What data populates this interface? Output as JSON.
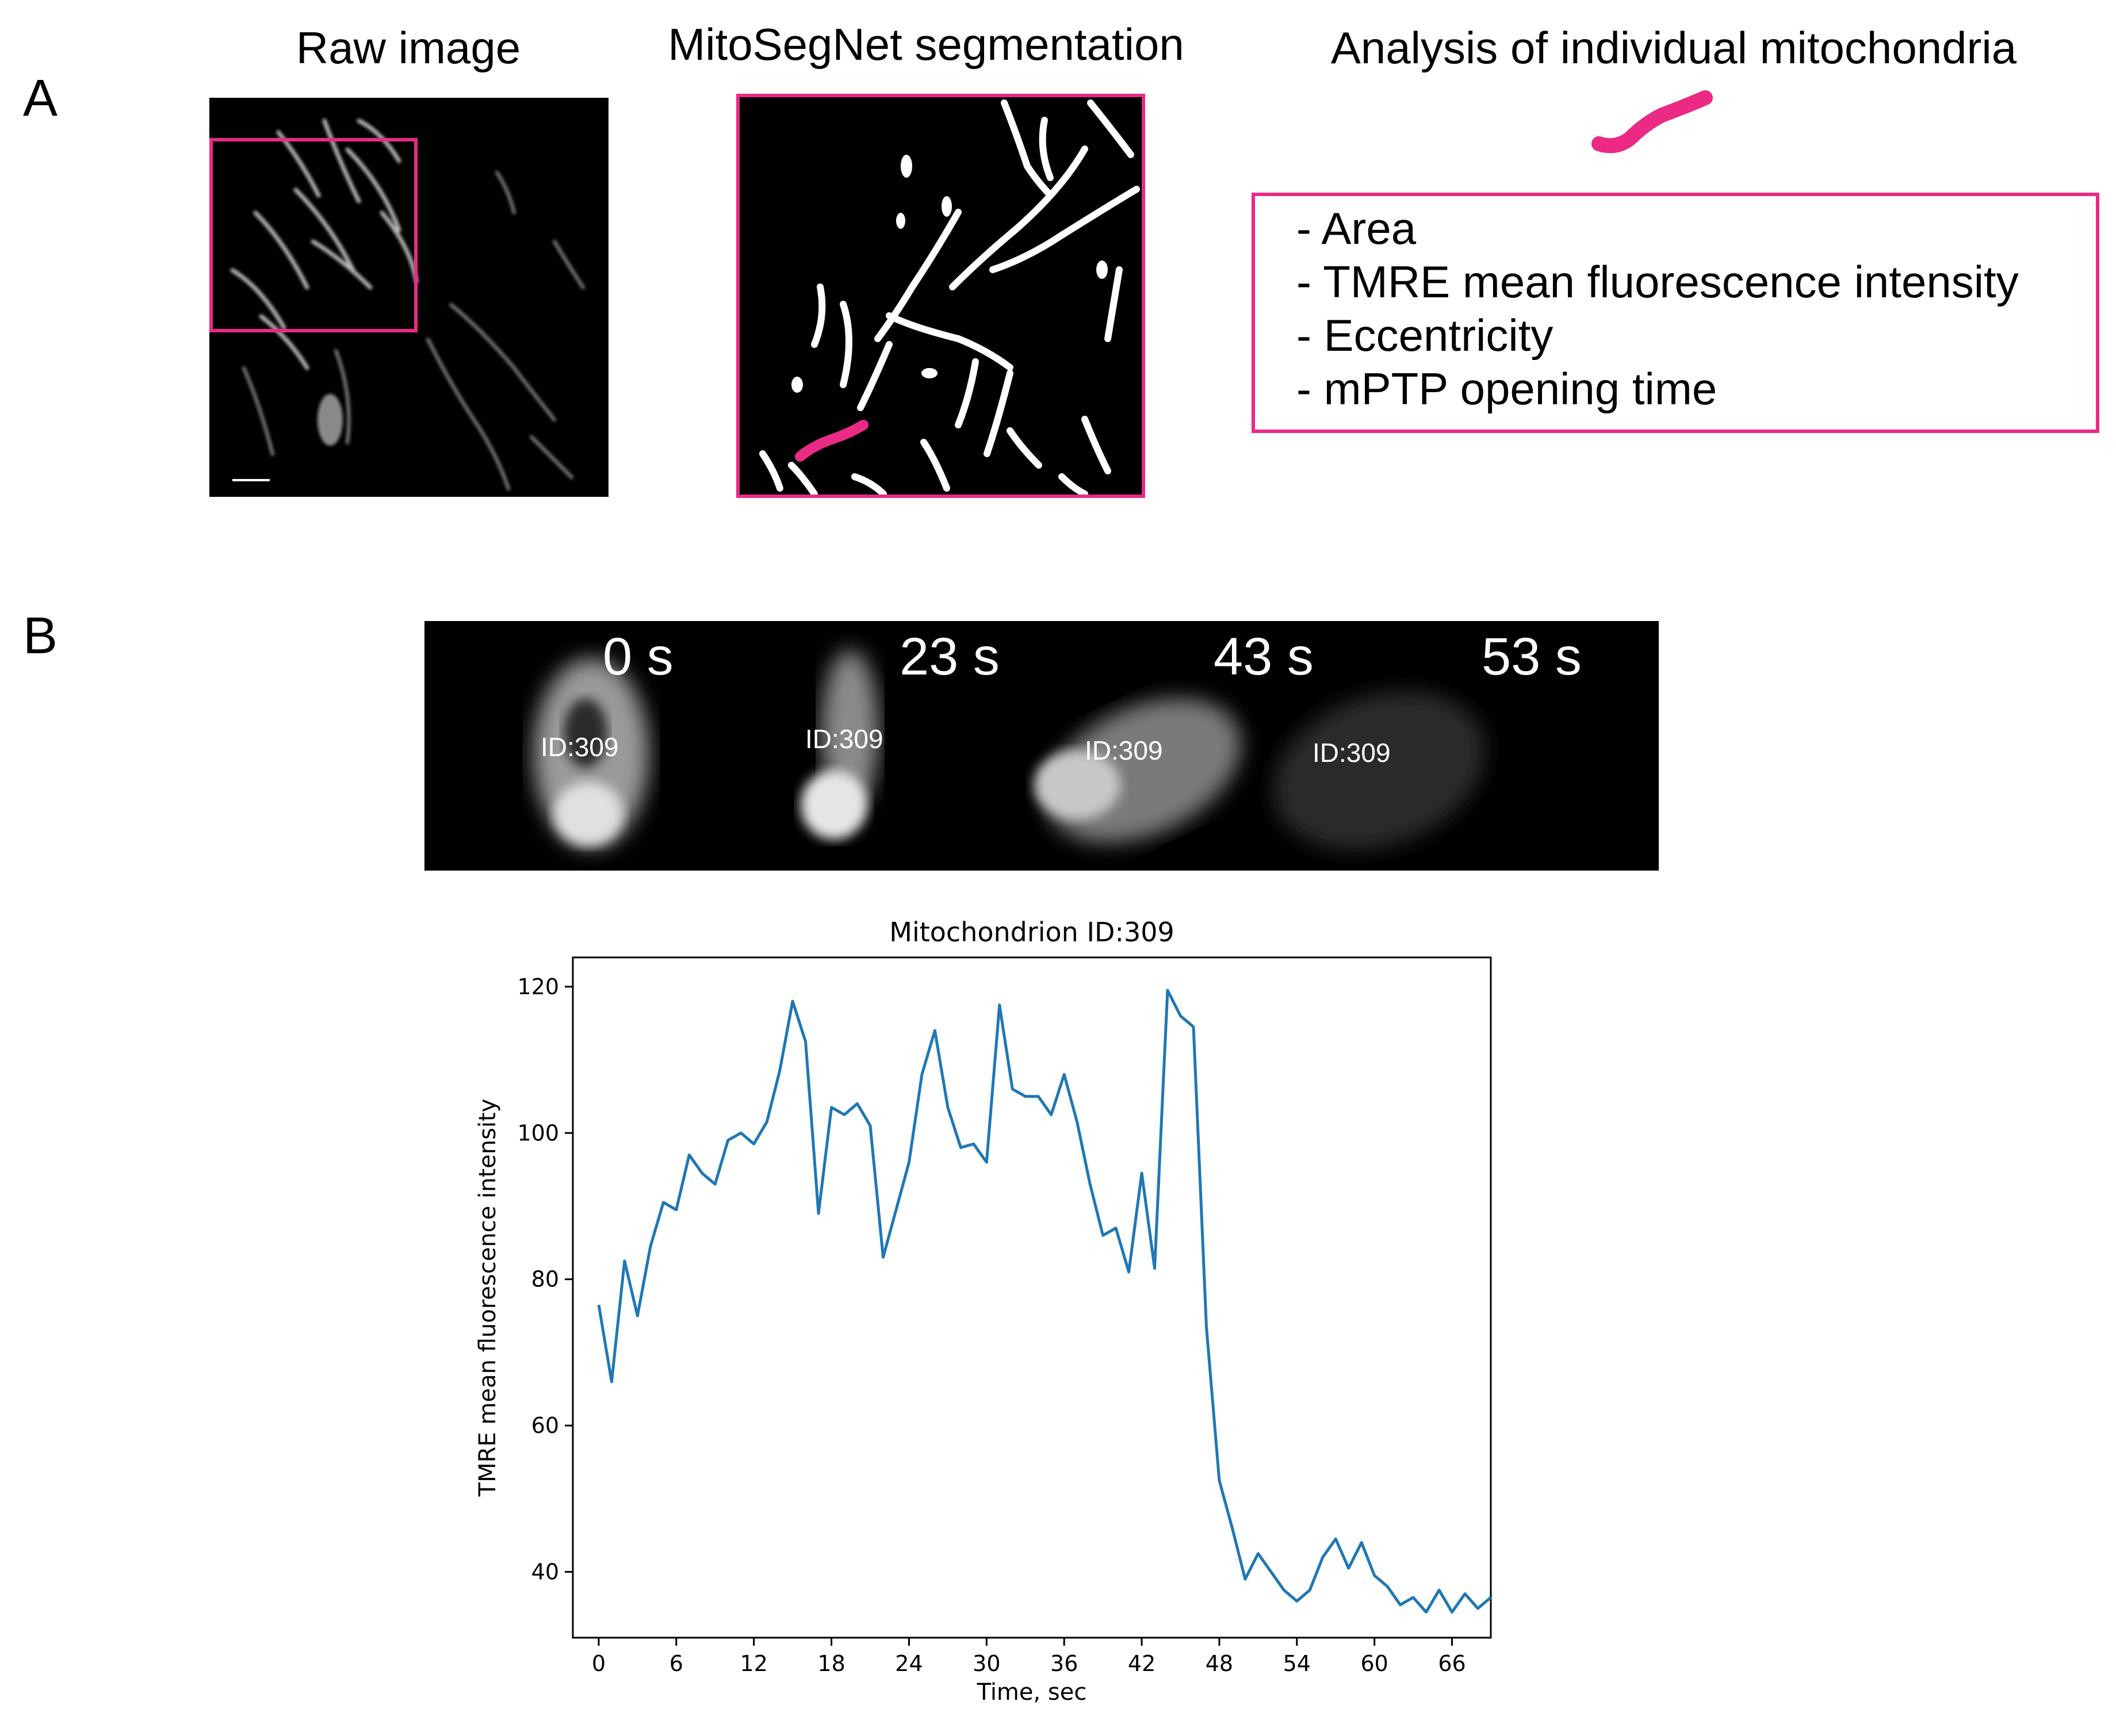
{
  "panel_a": {
    "letter": "A",
    "raw_title": "Raw image",
    "seg_title": "MitoSegNet segmentation",
    "analysis_title": "Analysis of individual mitochondria",
    "features": [
      "- Area",
      "- TMRE mean fluorescence intensity",
      "- Eccentricity",
      "- mPTP opening time"
    ],
    "highlight_color": "#ea2a84"
  },
  "panel_b": {
    "letter": "B",
    "frames": [
      {
        "time": "0 s",
        "id": "ID:309"
      },
      {
        "time": "23 s",
        "id": "ID:309"
      },
      {
        "time": "43 s",
        "id": "ID:309"
      },
      {
        "time": "53 s",
        "id": "ID:309"
      }
    ]
  },
  "chart_data": {
    "type": "line",
    "title": "Mitochondrion ID:309",
    "xlabel": "Time, sec",
    "ylabel": "TMRE mean fluorescence intensity",
    "xlim": [
      -2,
      69
    ],
    "ylim": [
      31,
      124
    ],
    "xticks": [
      0,
      6,
      12,
      18,
      24,
      30,
      36,
      42,
      48,
      54,
      60,
      66
    ],
    "yticks": [
      40,
      60,
      80,
      100,
      120
    ],
    "line_color": "#1f77b4",
    "x": [
      0,
      1,
      2,
      3,
      4,
      5,
      6,
      7,
      8,
      9,
      10,
      11,
      12,
      13,
      14,
      15,
      16,
      17,
      18,
      19,
      20,
      21,
      22,
      23,
      24,
      25,
      26,
      27,
      28,
      29,
      30,
      31,
      32,
      33,
      34,
      35,
      36,
      37,
      38,
      39,
      40,
      41,
      42,
      43,
      44,
      45,
      46,
      47,
      48,
      49,
      50,
      51,
      52,
      53,
      54,
      55,
      56,
      57,
      58,
      59,
      60,
      61,
      62,
      63,
      64,
      65,
      66,
      67,
      68,
      69
    ],
    "y": [
      76.5,
      66,
      82.5,
      75,
      84.5,
      90.5,
      89.5,
      97,
      94.5,
      93,
      99,
      100,
      98.5,
      101.5,
      108.5,
      118,
      112.5,
      89,
      103.5,
      102.5,
      104,
      101,
      83,
      89.5,
      96,
      108,
      114,
      103.5,
      98,
      98.5,
      96,
      117.5,
      106,
      105,
      105,
      102.5,
      108,
      101.5,
      93,
      86,
      87,
      81,
      94.5,
      81.5,
      119.5,
      116,
      114.5,
      73.5,
      52.5,
      46,
      39,
      42.5,
      40,
      37.5,
      36,
      37.5,
      42,
      44.5,
      40.5,
      44,
      39.5,
      38,
      35.5,
      36.5,
      34.5,
      37.5,
      34.5,
      37,
      35,
      36.5
    ]
  }
}
